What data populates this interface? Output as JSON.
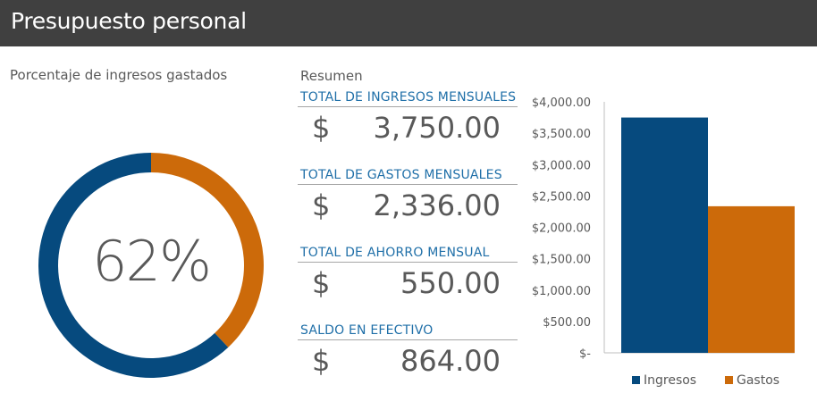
{
  "header": {
    "title": "Presupuesto personal"
  },
  "donut_section": {
    "label": "Porcentaje de ingresos gastados",
    "percent_text": "62%"
  },
  "summary": {
    "label": "Resumen",
    "items": [
      {
        "title": "TOTAL DE INGRESOS MENSUALES",
        "currency": "$",
        "amount": "3,750.00"
      },
      {
        "title": "TOTAL DE GASTOS MENSUALES",
        "currency": "$",
        "amount": "2,336.00"
      },
      {
        "title": "TOTAL DE AHORRO MENSUAL",
        "currency": "$",
        "amount": "550.00"
      },
      {
        "title": "SALDO EN EFECTIVO",
        "currency": "$",
        "amount": "864.00"
      }
    ]
  },
  "colors": {
    "header_bg": "#404040",
    "ingresos": "#064a7e",
    "gastos": "#cc6a0a",
    "accent_text": "#1f6fa8"
  },
  "chart_data": [
    {
      "type": "pie",
      "subtype": "donut",
      "title": "Porcentaje de ingresos gastados",
      "center_label": "62%",
      "values": [
        62,
        38
      ],
      "colors": [
        "#064a7e",
        "#cc6a0a"
      ]
    },
    {
      "type": "bar",
      "categories": [
        ""
      ],
      "series": [
        {
          "name": "Ingresos",
          "values": [
            3750
          ],
          "color": "#064a7e"
        },
        {
          "name": "Gastos",
          "values": [
            2336
          ],
          "color": "#cc6a0a"
        }
      ],
      "ylim": [
        0,
        4000
      ],
      "yticks": [
        0,
        500,
        1000,
        1500,
        2000,
        2500,
        3000,
        3500,
        4000
      ],
      "ytick_labels": [
        "$-",
        "$500.00",
        "$1,000.00",
        "$1,500.00",
        "$2,000.00",
        "$2,500.00",
        "$3,000.00",
        "$3,500.00",
        "$4,000.00"
      ],
      "grid": false,
      "legend": "bottom"
    }
  ]
}
